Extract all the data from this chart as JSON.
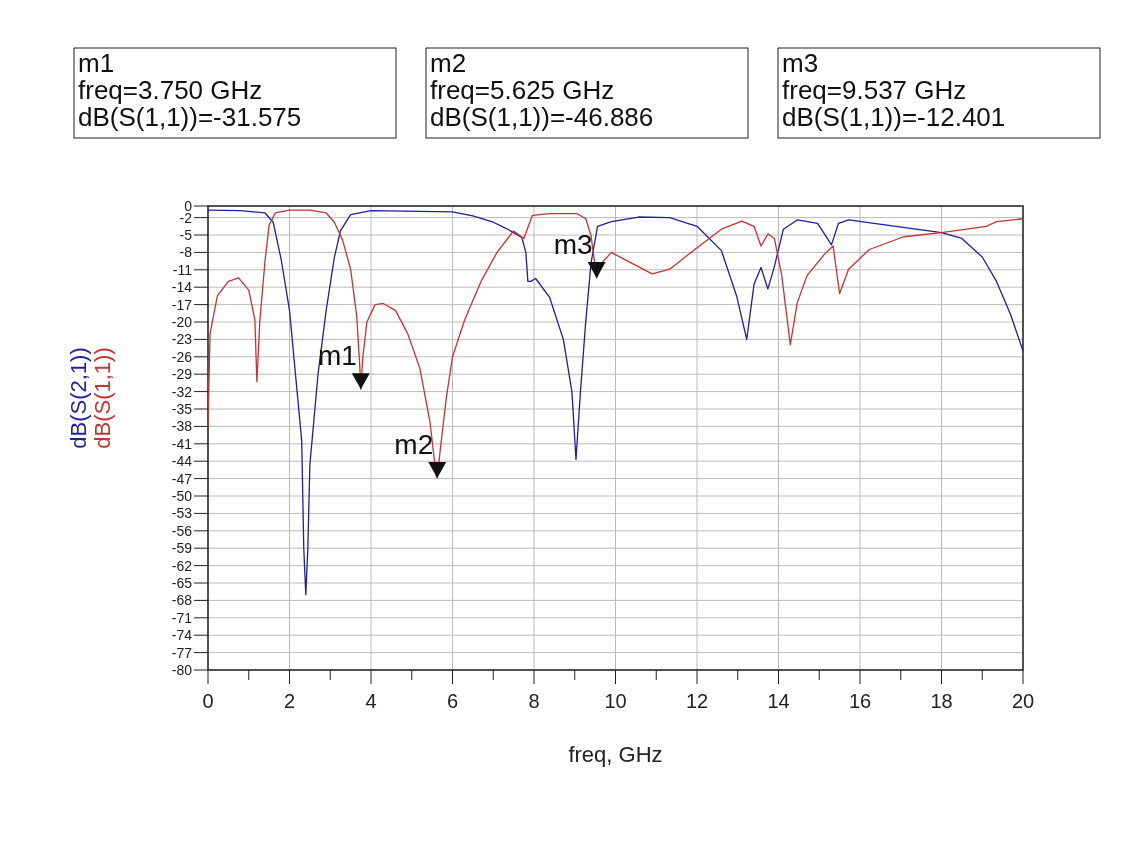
{
  "chart_data": {
    "type": "line",
    "xlabel": "freq, GHz",
    "xlim": [
      0,
      20
    ],
    "ylim": [
      -80,
      0
    ],
    "xticks": [
      0,
      {
        "value": 1,
        "label": null
      },
      2,
      {
        "value": 3,
        "label": null
      },
      4,
      {
        "value": 5,
        "label": null
      },
      6,
      {
        "value": 7,
        "label": null
      },
      8,
      {
        "value": 9,
        "label": null
      },
      10,
      {
        "value": 11,
        "label": null
      },
      12,
      {
        "value": 13,
        "label": null
      },
      14,
      {
        "value": 15,
        "label": null
      },
      16,
      {
        "value": 17,
        "label": null
      },
      18,
      {
        "value": 19,
        "label": null
      },
      20
    ],
    "yticks": [
      0,
      -2,
      -5,
      -8,
      -11,
      -14,
      -17,
      -20,
      -23,
      -26,
      -29,
      -32,
      -35,
      -38,
      -41,
      -44,
      -47,
      -50,
      -53,
      -56,
      -59,
      -62,
      -65,
      -68,
      -71,
      -74,
      -77,
      -80
    ],
    "grid": true,
    "legend": "left",
    "marker": "none",
    "line_style": "solid",
    "series": [
      {
        "name": "dB(S(2,1))",
        "color": "#1f1fa0",
        "x": [
          0,
          0.8,
          1.4,
          1.6,
          1.8,
          2.0,
          2.2,
          2.3,
          2.35,
          2.4,
          2.45,
          2.5,
          2.7,
          2.9,
          3.1,
          3.25,
          3.5,
          4,
          6,
          6.5,
          7.0,
          7.3,
          7.7,
          7.8,
          7.85,
          7.92,
          8.04,
          8.38,
          8.72,
          8.93,
          9.03,
          9.14,
          9.27,
          9.4,
          9.56,
          9.9,
          10.57,
          11.33,
          12.0,
          12.6,
          12.98,
          13.22,
          13.4,
          13.57,
          13.74,
          13.9,
          14.12,
          14.46,
          14.96,
          15.3,
          15.47,
          15.72,
          18.0,
          18.5,
          19.0,
          19.35,
          19.7,
          20
        ],
        "values": [
          -0.7,
          -0.8,
          -1.2,
          -2.8,
          -9.4,
          -18,
          -33,
          -40.5,
          -59,
          -67,
          -59,
          -44.6,
          -29,
          -18,
          -8.9,
          -4.3,
          -1.5,
          -0.8,
          -1,
          -1.7,
          -2.8,
          -3.8,
          -5.4,
          -8,
          -13,
          -13,
          -12.5,
          -15.7,
          -23,
          -32,
          -43.7,
          -32,
          -19.9,
          -9.8,
          -3.5,
          -2.7,
          -1.9,
          -2,
          -3.5,
          -7.7,
          -15.7,
          -23,
          -13.5,
          -10.6,
          -14.3,
          -10.4,
          -4,
          -2.4,
          -3,
          -6.7,
          -3,
          -2.4,
          -4.6,
          -5.6,
          -8.8,
          -13,
          -18.8,
          -25
        ]
      },
      {
        "name": "dB(S(1,1))",
        "color": "#c83232",
        "x": [
          0,
          0.05,
          0.23,
          0.5,
          0.75,
          1.0,
          1.15,
          1.2,
          1.27,
          1.4,
          1.5,
          1.65,
          2.0,
          2.5,
          2.9,
          3.1,
          3.3,
          3.5,
          3.65,
          3.72,
          3.75,
          3.8,
          3.9,
          4.1,
          4.3,
          4.6,
          4.9,
          5.2,
          5.45,
          5.6,
          5.625,
          5.7,
          5.85,
          6.0,
          6.3,
          6.7,
          7.1,
          7.5,
          7.75,
          7.96,
          8.38,
          9.05,
          9.27,
          9.4,
          9.537,
          9.69,
          9.9,
          10.24,
          10.9,
          11.33,
          12.0,
          12.6,
          13.1,
          13.4,
          13.57,
          13.74,
          13.9,
          14.08,
          14.29,
          14.46,
          14.7,
          15.13,
          15.34,
          15.5,
          15.72,
          16.23,
          17.07,
          18.0,
          19.1,
          19.35,
          20
        ],
        "values": [
          -38,
          -22,
          -15.5,
          -13,
          -12.4,
          -14.5,
          -19.6,
          -30.3,
          -20,
          -9.4,
          -3.3,
          -1.2,
          -0.7,
          -0.7,
          -1.2,
          -2.8,
          -5.8,
          -10.9,
          -19,
          -27,
          -31.575,
          -26,
          -20,
          -17,
          -16.8,
          -18,
          -22,
          -28,
          -37.4,
          -46.6,
          -46.886,
          -42,
          -33,
          -26,
          -19.6,
          -13,
          -7.9,
          -4.3,
          -5.6,
          -1.6,
          -1.3,
          -1.3,
          -2.2,
          -5.1,
          -12.401,
          -9.6,
          -8,
          -9.3,
          -11.7,
          -10.9,
          -7.2,
          -4,
          -2.6,
          -3.5,
          -6.9,
          -4.8,
          -5.6,
          -12,
          -23.9,
          -16.7,
          -12,
          -8.3,
          -6.9,
          -15.1,
          -10.9,
          -7.5,
          -5.3,
          -4.6,
          -3.5,
          -2.7,
          -2.2
        ]
      }
    ],
    "annotations": [
      "m1\nfreq=3.750 GHz\ndB(S(1,1))=-31.575",
      "m2\nfreq=5.625 GHz\ndB(S(1,1))=-46.886",
      "m3\nfreq=9.537 GHz\ndB(S(1,1))=-12.401",
      {
        "text": "m1",
        "x": 3.75,
        "y": -31.575
      },
      {
        "text": "m2",
        "x": 5.625,
        "y": -46.886
      },
      {
        "text": "m3",
        "x": 9.537,
        "y": -12.401
      }
    ]
  }
}
